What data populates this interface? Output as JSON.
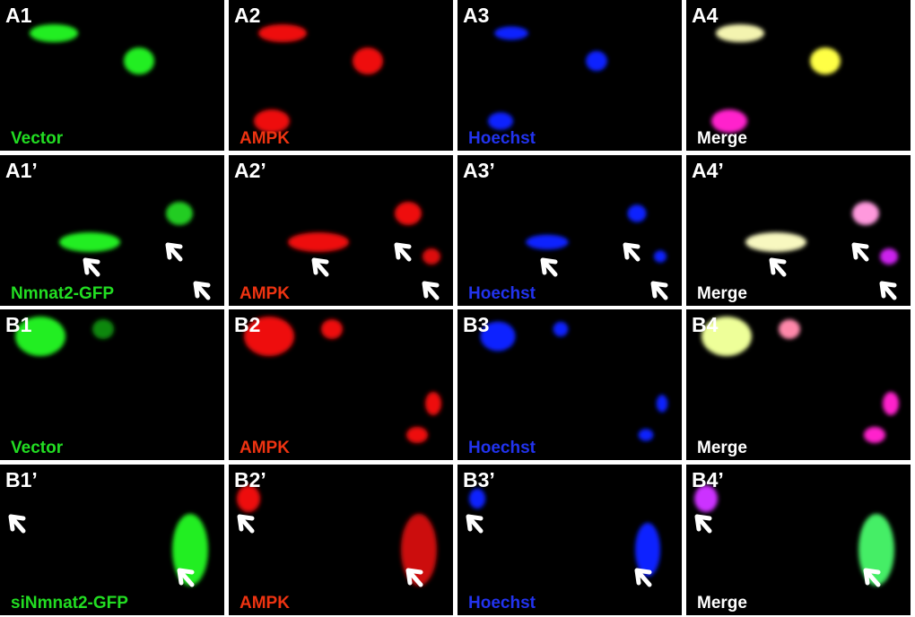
{
  "panels": [
    {
      "label": "A1",
      "caption": "Vector"
    },
    {
      "label": "A2",
      "caption": "AMPK"
    },
    {
      "label": "A3",
      "caption": "Hoechst"
    },
    {
      "label": "A4",
      "caption": "Merge"
    },
    {
      "label": "A1’",
      "caption": "Nmnat2-GFP"
    },
    {
      "label": "A2’",
      "caption": "AMPK"
    },
    {
      "label": "A3’",
      "caption": "Hoechst"
    },
    {
      "label": "A4’",
      "caption": "Merge"
    },
    {
      "label": "B1",
      "caption": "Vector"
    },
    {
      "label": "B2",
      "caption": "AMPK"
    },
    {
      "label": "B3",
      "caption": "Hoechst"
    },
    {
      "label": "B4",
      "caption": "Merge"
    },
    {
      "label": "B1’",
      "caption": "siNmnat2-GFP"
    },
    {
      "label": "B2’",
      "caption": "AMPK"
    },
    {
      "label": "B3’",
      "caption": "Hoechst"
    },
    {
      "label": "B4’",
      "caption": "Merge"
    }
  ]
}
